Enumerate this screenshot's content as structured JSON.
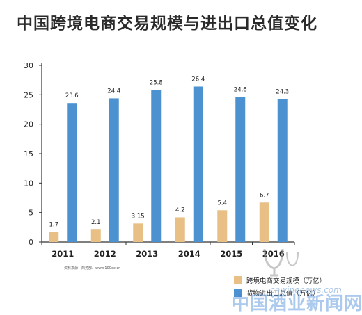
{
  "chart_data": {
    "type": "bar",
    "title": "中国跨境电商交易规模与进出口总值变化",
    "categories": [
      "2011",
      "2012",
      "2013",
      "2014",
      "2015",
      "2016"
    ],
    "series": [
      {
        "name": "跨境电商交易规模（万亿）",
        "values": [
          1.7,
          2.1,
          3.15,
          4.2,
          5.4,
          6.7
        ],
        "labels": [
          "1.7",
          "2.1",
          "3.15",
          "4.2",
          "5.4",
          "6.7"
        ],
        "color": "#e8bf84"
      },
      {
        "name": "货物进出口总值（万亿）",
        "values": [
          23.6,
          24.4,
          25.8,
          26.4,
          24.6,
          24.3
        ],
        "labels": [
          "23.6",
          "24.4",
          "25.8",
          "26.4",
          "24.6",
          "24.3"
        ],
        "color": "#4d92d0"
      }
    ],
    "yticks": [
      "0",
      "5",
      "10",
      "15",
      "20",
      "25",
      "30"
    ],
    "ylim": [
      0,
      30
    ],
    "grid": false,
    "legend_position": "bottom-right",
    "source": "资料来源：商务部、www.100ec.cn"
  },
  "watermark": {
    "url": "cnwinenews.com",
    "text": "中国酒业新闻网"
  }
}
